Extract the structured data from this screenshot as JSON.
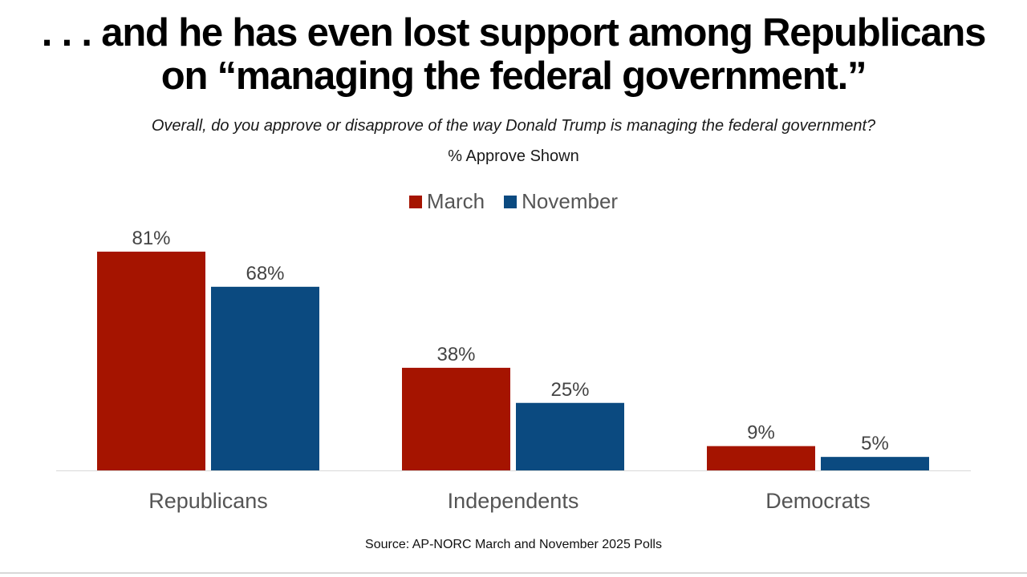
{
  "headline": {
    "line1": ". . . and he has even lost support among Republicans",
    "line2": "on “managing the federal government.”"
  },
  "question": "Overall, do you approve or disapprove of the way Donald Trump is managing the federal government?",
  "subnote": "% Approve Shown",
  "source": "Source: AP-NORC March and November 2025 Polls",
  "colors": {
    "march": "#a51400",
    "november": "#0b4a80"
  },
  "chart_data": {
    "type": "bar",
    "categories": [
      "Republicans",
      "Independents",
      "Democrats"
    ],
    "series": [
      {
        "name": "March",
        "values": [
          81,
          38,
          9
        ],
        "labels": [
          "81%",
          "38%",
          "9%"
        ]
      },
      {
        "name": "November",
        "values": [
          68,
          25,
          5
        ],
        "labels": [
          "68%",
          "25%",
          "5%"
        ]
      }
    ],
    "title": "",
    "xlabel": "",
    "ylabel": "",
    "ylim": [
      0,
      100
    ],
    "grid": false,
    "legend": "top-center"
  }
}
